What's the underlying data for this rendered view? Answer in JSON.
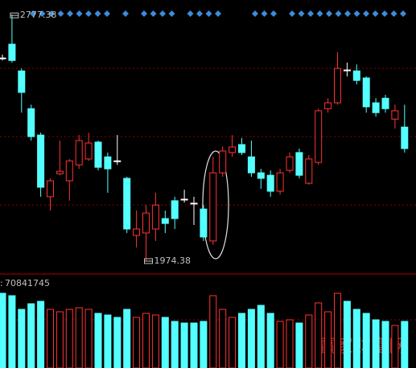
{
  "chart_data": {
    "type": "candlestick",
    "open": [
      2636,
      2681,
      2594,
      2471,
      2385,
      2184,
      2259,
      2236,
      2288,
      2307,
      2362,
      2314,
      2301,
      2244,
      2058,
      2066,
      2079,
      2113,
      2171,
      2176,
      2163,
      2144,
      2040,
      2262,
      2328,
      2354,
      2314,
      2262,
      2254,
      2202,
      2270,
      2328,
      2228,
      2296,
      2471,
      2490,
      2597,
      2594,
      2571,
      2490,
      2505,
      2437,
      2411
    ],
    "high": [
      2647,
      2777.38,
      2602,
      2484,
      2393,
      2244,
      2367,
      2307,
      2385,
      2393,
      2367,
      2328,
      2385,
      2249,
      2139,
      2157,
      2197,
      2139,
      2184,
      2207,
      2184,
      2157,
      2314,
      2348,
      2385,
      2375,
      2367,
      2275,
      2270,
      2275,
      2328,
      2341,
      2320,
      2471,
      2505,
      2655,
      2621,
      2615,
      2576,
      2505,
      2516,
      2484,
      2484
    ],
    "low": [
      2628,
      2621,
      2458,
      2367,
      2184,
      2139,
      2254,
      2171,
      2275,
      2301,
      2270,
      2197,
      2288,
      2066,
      2019,
      1974.38,
      2040,
      2066,
      2079,
      2165,
      2092,
      2040,
      2027,
      2249,
      2314,
      2320,
      2249,
      2210,
      2184,
      2191,
      2262,
      2244,
      2223,
      2288,
      2458,
      2484,
      2576,
      2550,
      2458,
      2445,
      2458,
      2406,
      2328
    ],
    "close": [
      2636,
      2628,
      2524,
      2380,
      2215,
      2236,
      2267,
      2301,
      2367,
      2359,
      2280,
      2275,
      2301,
      2079,
      2079,
      2131,
      2157,
      2097,
      2113,
      2176,
      2163,
      2053,
      2262,
      2333,
      2346,
      2328,
      2262,
      2244,
      2202,
      2262,
      2314,
      2254,
      2307,
      2464,
      2490,
      2602,
      2597,
      2563,
      2477,
      2458,
      2471,
      2464,
      2341
    ],
    "volume": [
      62745519,
      60721470,
      49251859,
      53974640,
      55998689,
      49251859,
      47227810,
      49251859,
      50601225,
      49251859,
      45878444,
      44529078,
      42505029,
      49251859,
      42505029,
      45878444,
      44529078,
      42505029,
      39131614,
      37782248,
      37782248,
      39131614,
      60721470,
      49251859,
      42505029,
      45878444,
      49251859,
      52625274,
      45878444,
      39131614,
      40480980,
      37782248,
      44529078,
      54649323,
      47227810,
      62745519,
      55998689,
      49251859,
      45878444,
      40480980,
      39131614,
      35758199,
      39131614
    ],
    "ylim": [
      1935,
      2825
    ],
    "y2lim": [
      0,
      70841745
    ],
    "volume_prefix": ":",
    "watermark": "赢家财富网",
    "up_color": "#ff3232",
    "down_color": "#54ffff",
    "flat_color": "#ffffff"
  }
}
